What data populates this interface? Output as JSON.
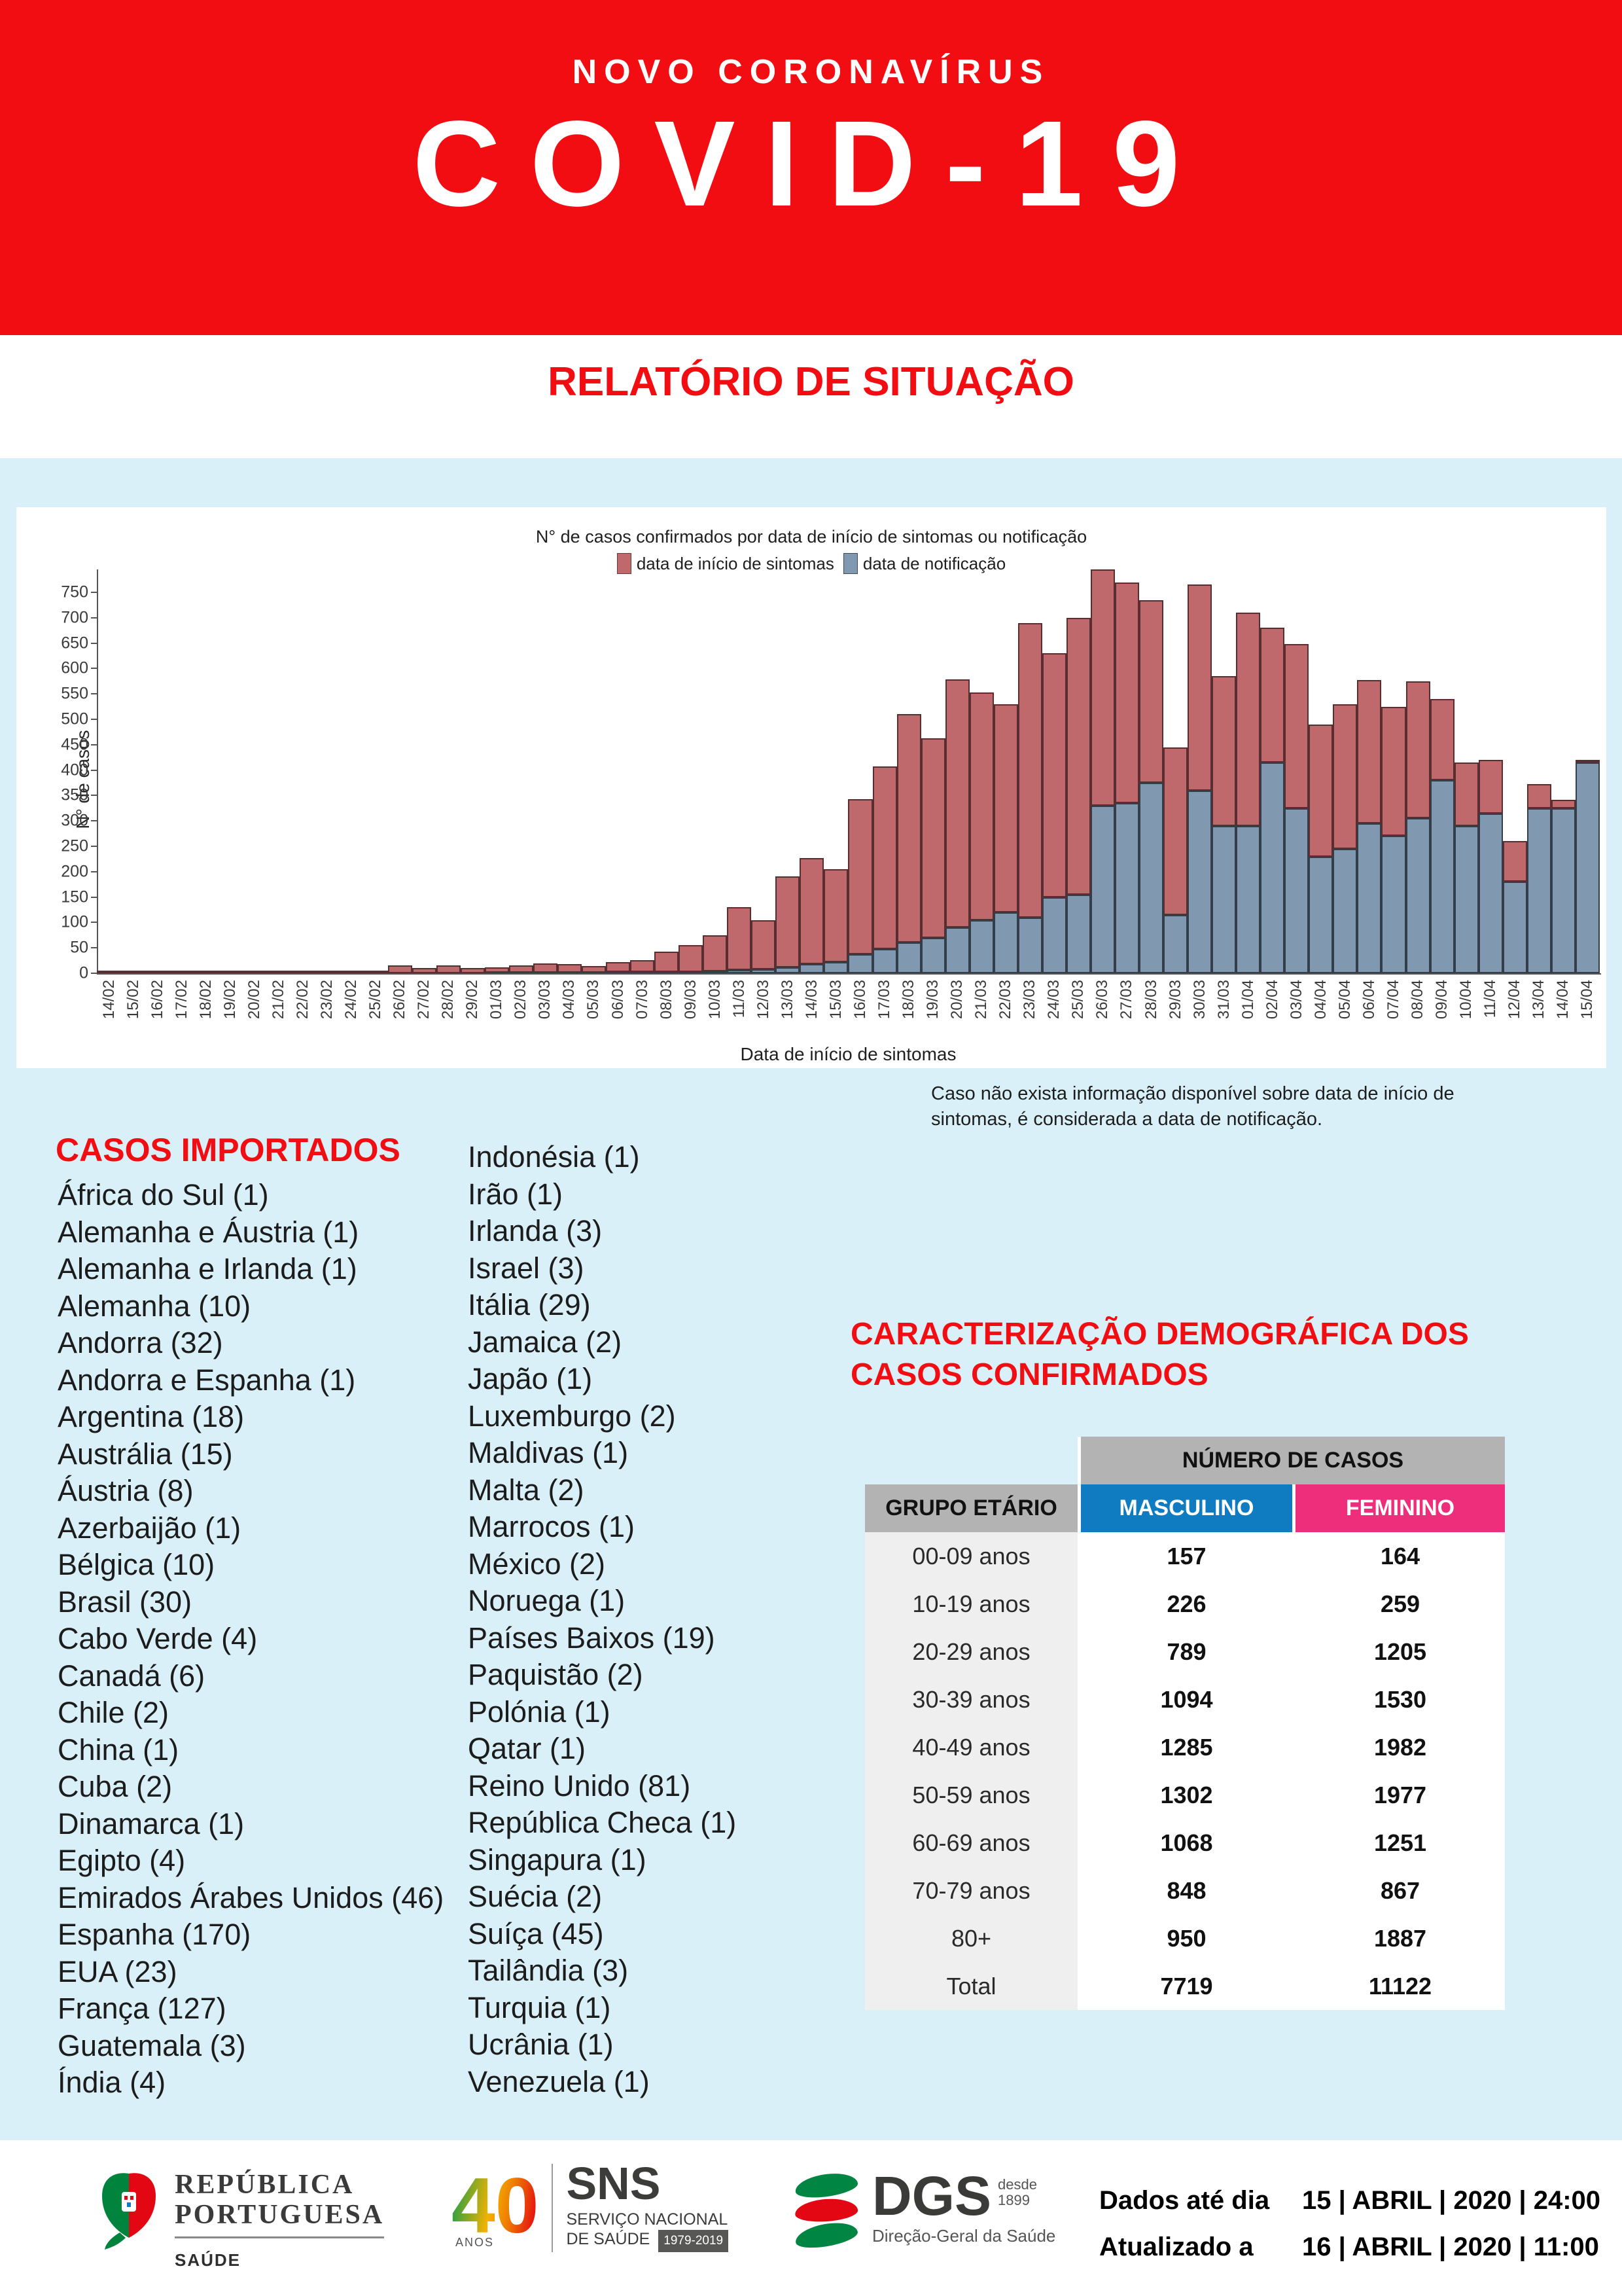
{
  "header": {
    "kicker": "NOVO CORONAVÍRUS",
    "title": "COVID-19",
    "subtitle": "RELATÓRIO DE SITUAÇÃO"
  },
  "colors": {
    "banner_red": "#f20d13",
    "page_blue": "#d9f0f8",
    "bar_sintomas": "#c0696c",
    "bar_notificacao": "#8099b1",
    "table_header_gray": "#b3b3b3",
    "masculino_blue": "#0f7bc0",
    "feminino_pink": "#ee2e7b"
  },
  "chart_data": {
    "type": "bar",
    "stacked": true,
    "title": "N° de casos confirmados por data de início de sintomas ou notificação",
    "xlabel": "Data de início de sintomas",
    "ylabel": "N° de casos",
    "ylim": [
      0,
      750
    ],
    "ytick_step": 50,
    "grid": false,
    "legend_position": "top",
    "categories": [
      "14/02",
      "15/02",
      "16/02",
      "17/02",
      "18/02",
      "19/02",
      "20/02",
      "21/02",
      "22/02",
      "23/02",
      "24/02",
      "25/02",
      "26/02",
      "27/02",
      "28/02",
      "29/02",
      "01/03",
      "02/03",
      "03/03",
      "04/03",
      "05/03",
      "06/03",
      "07/03",
      "08/03",
      "09/03",
      "10/03",
      "11/03",
      "12/03",
      "13/03",
      "14/03",
      "15/03",
      "16/03",
      "17/03",
      "18/03",
      "19/03",
      "20/03",
      "21/03",
      "22/03",
      "23/03",
      "24/03",
      "25/03",
      "26/03",
      "27/03",
      "28/03",
      "29/03",
      "30/03",
      "31/03",
      "01/04",
      "02/04",
      "03/04",
      "04/04",
      "05/04",
      "06/04",
      "07/04",
      "08/04",
      "09/04",
      "10/04",
      "11/04",
      "12/04",
      "13/04",
      "14/04",
      "15/04"
    ],
    "series": [
      {
        "name": "data de início de sintomas",
        "color": "#c0696c",
        "values": [
          3,
          2,
          1,
          2,
          1,
          1,
          3,
          3,
          3,
          4,
          3,
          4,
          15,
          10,
          15,
          10,
          11,
          14,
          19,
          17,
          13,
          20,
          24,
          40,
          52,
          71,
          124,
          97,
          179,
          209,
          183,
          305,
          359,
          450,
          393,
          489,
          448,
          410,
          580,
          480,
          545,
          465,
          435,
          360,
          330,
          405,
          295,
          420,
          265,
          323,
          260,
          285,
          283,
          255,
          270,
          160,
          125,
          105,
          80,
          47,
          17,
          5
        ]
      },
      {
        "name": "data de notificação",
        "color": "#8099b1",
        "values": [
          0,
          0,
          0,
          0,
          0,
          0,
          0,
          0,
          0,
          0,
          0,
          0,
          0,
          0,
          0,
          0,
          1,
          1,
          1,
          1,
          1,
          2,
          2,
          3,
          3,
          4,
          6,
          8,
          12,
          18,
          22,
          38,
          48,
          60,
          70,
          90,
          105,
          120,
          110,
          150,
          155,
          330,
          335,
          375,
          115,
          360,
          290,
          290,
          415,
          325,
          230,
          245,
          295,
          270,
          305,
          380,
          290,
          315,
          180,
          325,
          325,
          415
        ]
      }
    ]
  },
  "note": "Caso não exista informação disponível sobre data de início de sintomas, é considerada a data de notificação.",
  "imported": {
    "heading": "CASOS IMPORTADOS",
    "column_left": [
      "África do Sul (1)",
      "Alemanha e Áustria (1)",
      "Alemanha e Irlanda (1)",
      "Alemanha (10)",
      "Andorra (32)",
      "Andorra e Espanha (1)",
      "Argentina (18)",
      "Austrália (15)",
      "Áustria (8)",
      "Azerbaijão (1)",
      "Bélgica (10)",
      "Brasil (30)",
      "Cabo Verde (4)",
      "Canadá (6)",
      "Chile (2)",
      "China (1)",
      "Cuba (2)",
      "Dinamarca (1)",
      "Egipto (4)",
      "Emirados Árabes Unidos (46)",
      "Espanha (170)",
      "EUA (23)",
      "França (127)",
      "Guatemala (3)",
      "Índia (4)"
    ],
    "column_right": [
      "Indonésia (1)",
      "Irão (1)",
      "Irlanda (3)",
      "Israel (3)",
      "Itália (29)",
      "Jamaica (2)",
      "Japão (1)",
      "Luxemburgo (2)",
      "Maldivas (1)",
      "Malta (2)",
      "Marrocos (1)",
      "México (2)",
      "Noruega (1)",
      "Países Baixos (19)",
      "Paquistão (2)",
      "Polónia (1)",
      "Qatar (1)",
      "Reino Unido (81)",
      "República Checa (1)",
      "Singapura (1)",
      "Suécia (2)",
      "Suíça (45)",
      "Tailândia (3)",
      "Turquia (1)",
      "Ucrânia (1)",
      "Venezuela (1)"
    ]
  },
  "demographics": {
    "heading_line1": "CARACTERIZAÇÃO DEMOGRÁFICA DOS",
    "heading_line2": "CASOS CONFIRMADOS",
    "table": {
      "group_header": "NÚMERO DE CASOS",
      "corner_label": "GRUPO ETÁRIO",
      "col_headers": [
        "MASCULINO",
        "FEMININO"
      ],
      "rows": [
        {
          "label": "00-09 anos",
          "masculino": "157",
          "feminino": "164"
        },
        {
          "label": "10-19 anos",
          "masculino": "226",
          "feminino": "259"
        },
        {
          "label": "20-29 anos",
          "masculino": "789",
          "feminino": "1205"
        },
        {
          "label": "30-39 anos",
          "masculino": "1094",
          "feminino": "1530"
        },
        {
          "label": "40-49 anos",
          "masculino": "1285",
          "feminino": "1982"
        },
        {
          "label": "50-59 anos",
          "masculino": "1302",
          "feminino": "1977"
        },
        {
          "label": "60-69 anos",
          "masculino": "1068",
          "feminino": "1251"
        },
        {
          "label": "70-79 anos",
          "masculino": "848",
          "feminino": "867"
        },
        {
          "label": "80+",
          "masculino": "950",
          "feminino": "1887"
        },
        {
          "label": "Total",
          "masculino": "7719",
          "feminino": "11122"
        }
      ]
    }
  },
  "footer": {
    "logos": {
      "republica_line1": "REPÚBLICA",
      "republica_line2": "PORTUGUESA",
      "republica_sub": "SAÚDE",
      "sns_40": "40",
      "sns_anos": "ANOS",
      "sns_name": "SNS",
      "sns_sub1": "SERVIÇO NACIONAL",
      "sns_sub2": "DE SAÚDE",
      "sns_badge": "1979-2019",
      "dgs_name": "DGS",
      "dgs_since1": "desde",
      "dgs_since2": "1899",
      "dgs_sub": "Direção-Geral da Saúde"
    },
    "dados_label": "Dados até dia",
    "dados_value": "15 | ABRIL | 2020 | 24:00",
    "atualizado_label": "Atualizado a",
    "atualizado_value": "16 | ABRIL | 2020 | 11:00"
  }
}
